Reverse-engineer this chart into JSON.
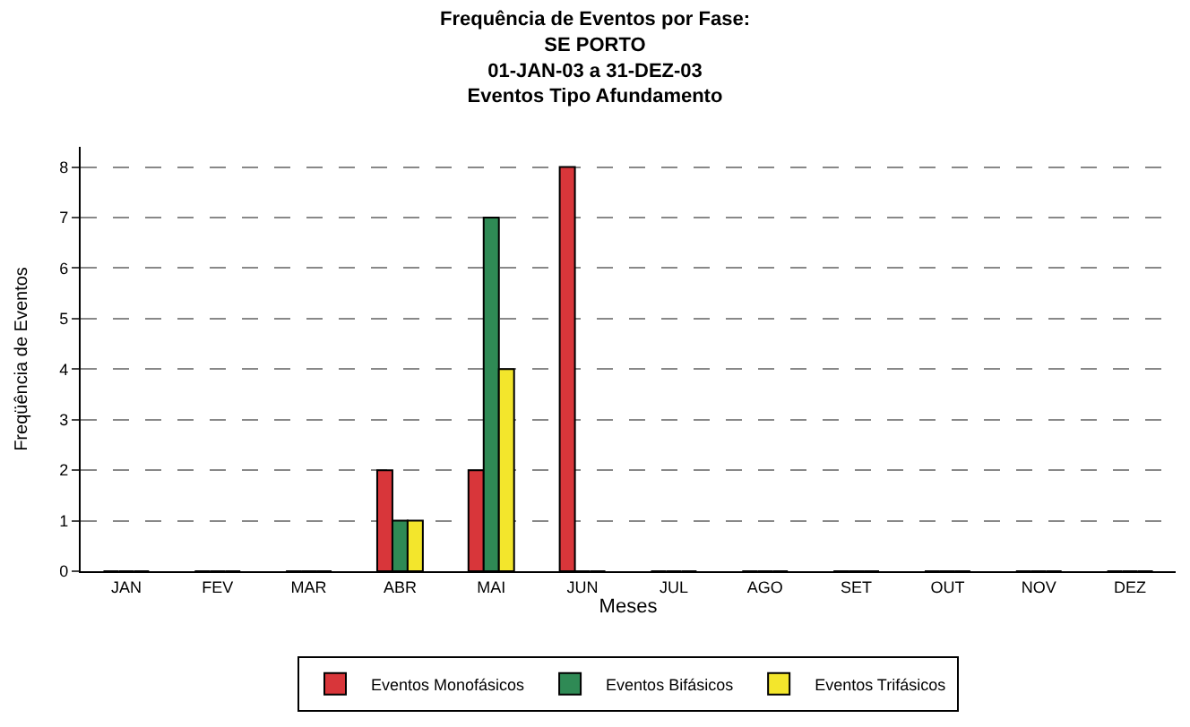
{
  "chart_data": {
    "type": "bar",
    "title": "Frequência de Eventos por Fase:\nSE PORTO\n01-JAN-03 a 31-DEZ-03\nEventos Tipo Afundamento",
    "xlabel": "Meses",
    "ylabel": "Freqüência de Eventos",
    "categories": [
      "JAN",
      "FEV",
      "MAR",
      "ABR",
      "MAI",
      "JUN",
      "JUL",
      "AGO",
      "SET",
      "OUT",
      "NOV",
      "DEZ"
    ],
    "series": [
      {
        "name": "Eventos Monofásicos",
        "color": "#d8363a",
        "values": [
          0,
          0,
          0,
          2,
          2,
          8,
          0,
          0,
          0,
          0,
          0,
          0
        ]
      },
      {
        "name": "Eventos Bifásicos",
        "color": "#2f8a55",
        "values": [
          0,
          0,
          0,
          1,
          7,
          0,
          0,
          0,
          0,
          0,
          0,
          0
        ]
      },
      {
        "name": "Eventos Trifásicos",
        "color": "#f3e62c",
        "values": [
          0,
          0,
          0,
          1,
          4,
          0,
          0,
          0,
          0,
          0,
          0,
          0
        ]
      }
    ],
    "ylim": [
      0,
      8.4
    ],
    "yticks": [
      0,
      1,
      2,
      3,
      4,
      5,
      6,
      7,
      8
    ],
    "grid": "y",
    "legend": "bottom"
  }
}
